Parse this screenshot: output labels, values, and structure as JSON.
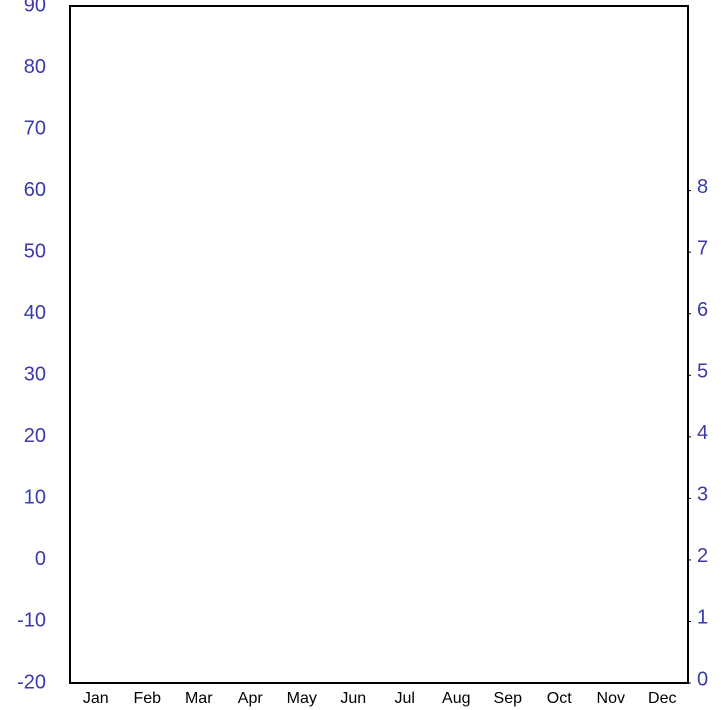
{
  "chart_data": {
    "type": "line",
    "categories": [
      "Jan",
      "Feb",
      "Mar",
      "Apr",
      "May",
      "Jun",
      "Jul",
      "Aug",
      "Sep",
      "Oct",
      "Nov",
      "Dec"
    ],
    "series": [],
    "ylim": [
      -20,
      90
    ],
    "yticks": [
      -20,
      -10,
      0,
      10,
      20,
      30,
      40,
      50,
      60,
      70,
      80,
      90
    ],
    "y2lim": [
      0,
      11
    ],
    "y2ticks": [
      0,
      1,
      2,
      3,
      4,
      5,
      6,
      7,
      8
    ],
    "grid": true
  }
}
